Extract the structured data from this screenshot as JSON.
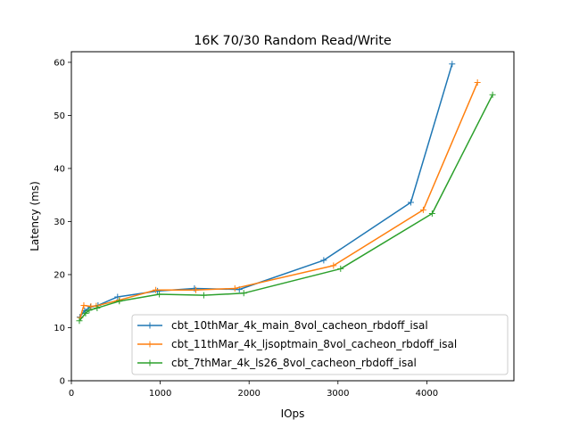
{
  "chart_data": {
    "type": "line",
    "title": "16K 70/30  Random Read/Write",
    "xlabel": "IOps",
    "ylabel": "Latency (ms)",
    "xlim": [
      0,
      4980
    ],
    "ylim": [
      0,
      62
    ],
    "xticks": [
      0,
      1000,
      2000,
      3000,
      4000
    ],
    "yticks": [
      0,
      10,
      20,
      30,
      40,
      50,
      60
    ],
    "grid": false,
    "legend_position": "lower-right",
    "series": [
      {
        "name": "cbt_10thMar_4k_main_8vol_cacheon_rbdoff_isal",
        "color": "#1f77b4",
        "x": [
          95,
          150,
          215,
          300,
          520,
          970,
          1385,
          1890,
          2840,
          3820,
          4285
        ],
        "y": [
          12.0,
          13.2,
          13.9,
          14.2,
          15.8,
          16.9,
          17.4,
          17.2,
          22.7,
          33.6,
          59.7
        ]
      },
      {
        "name": "cbt_11thMar_4k_ljsoptmain_8vol_cacheon_rbdoff_isal",
        "color": "#ff7f0e",
        "x": [
          100,
          140,
          220,
          280,
          540,
          950,
          1400,
          1840,
          2950,
          3960,
          4570
        ],
        "y": [
          11.9,
          14.2,
          14.0,
          14.1,
          15.2,
          17.1,
          17.1,
          17.4,
          21.7,
          32.2,
          56.2
        ]
      },
      {
        "name": "cbt_7thMar_4k_ls26_8vol_cacheon_rbdoff_isal",
        "color": "#2ca02c",
        "x": [
          90,
          160,
          200,
          290,
          540,
          990,
          1490,
          1940,
          3030,
          4060,
          4740
        ],
        "y": [
          11.3,
          12.7,
          13.3,
          13.7,
          15.0,
          16.3,
          16.1,
          16.5,
          21.1,
          31.5,
          53.9
        ]
      }
    ]
  }
}
